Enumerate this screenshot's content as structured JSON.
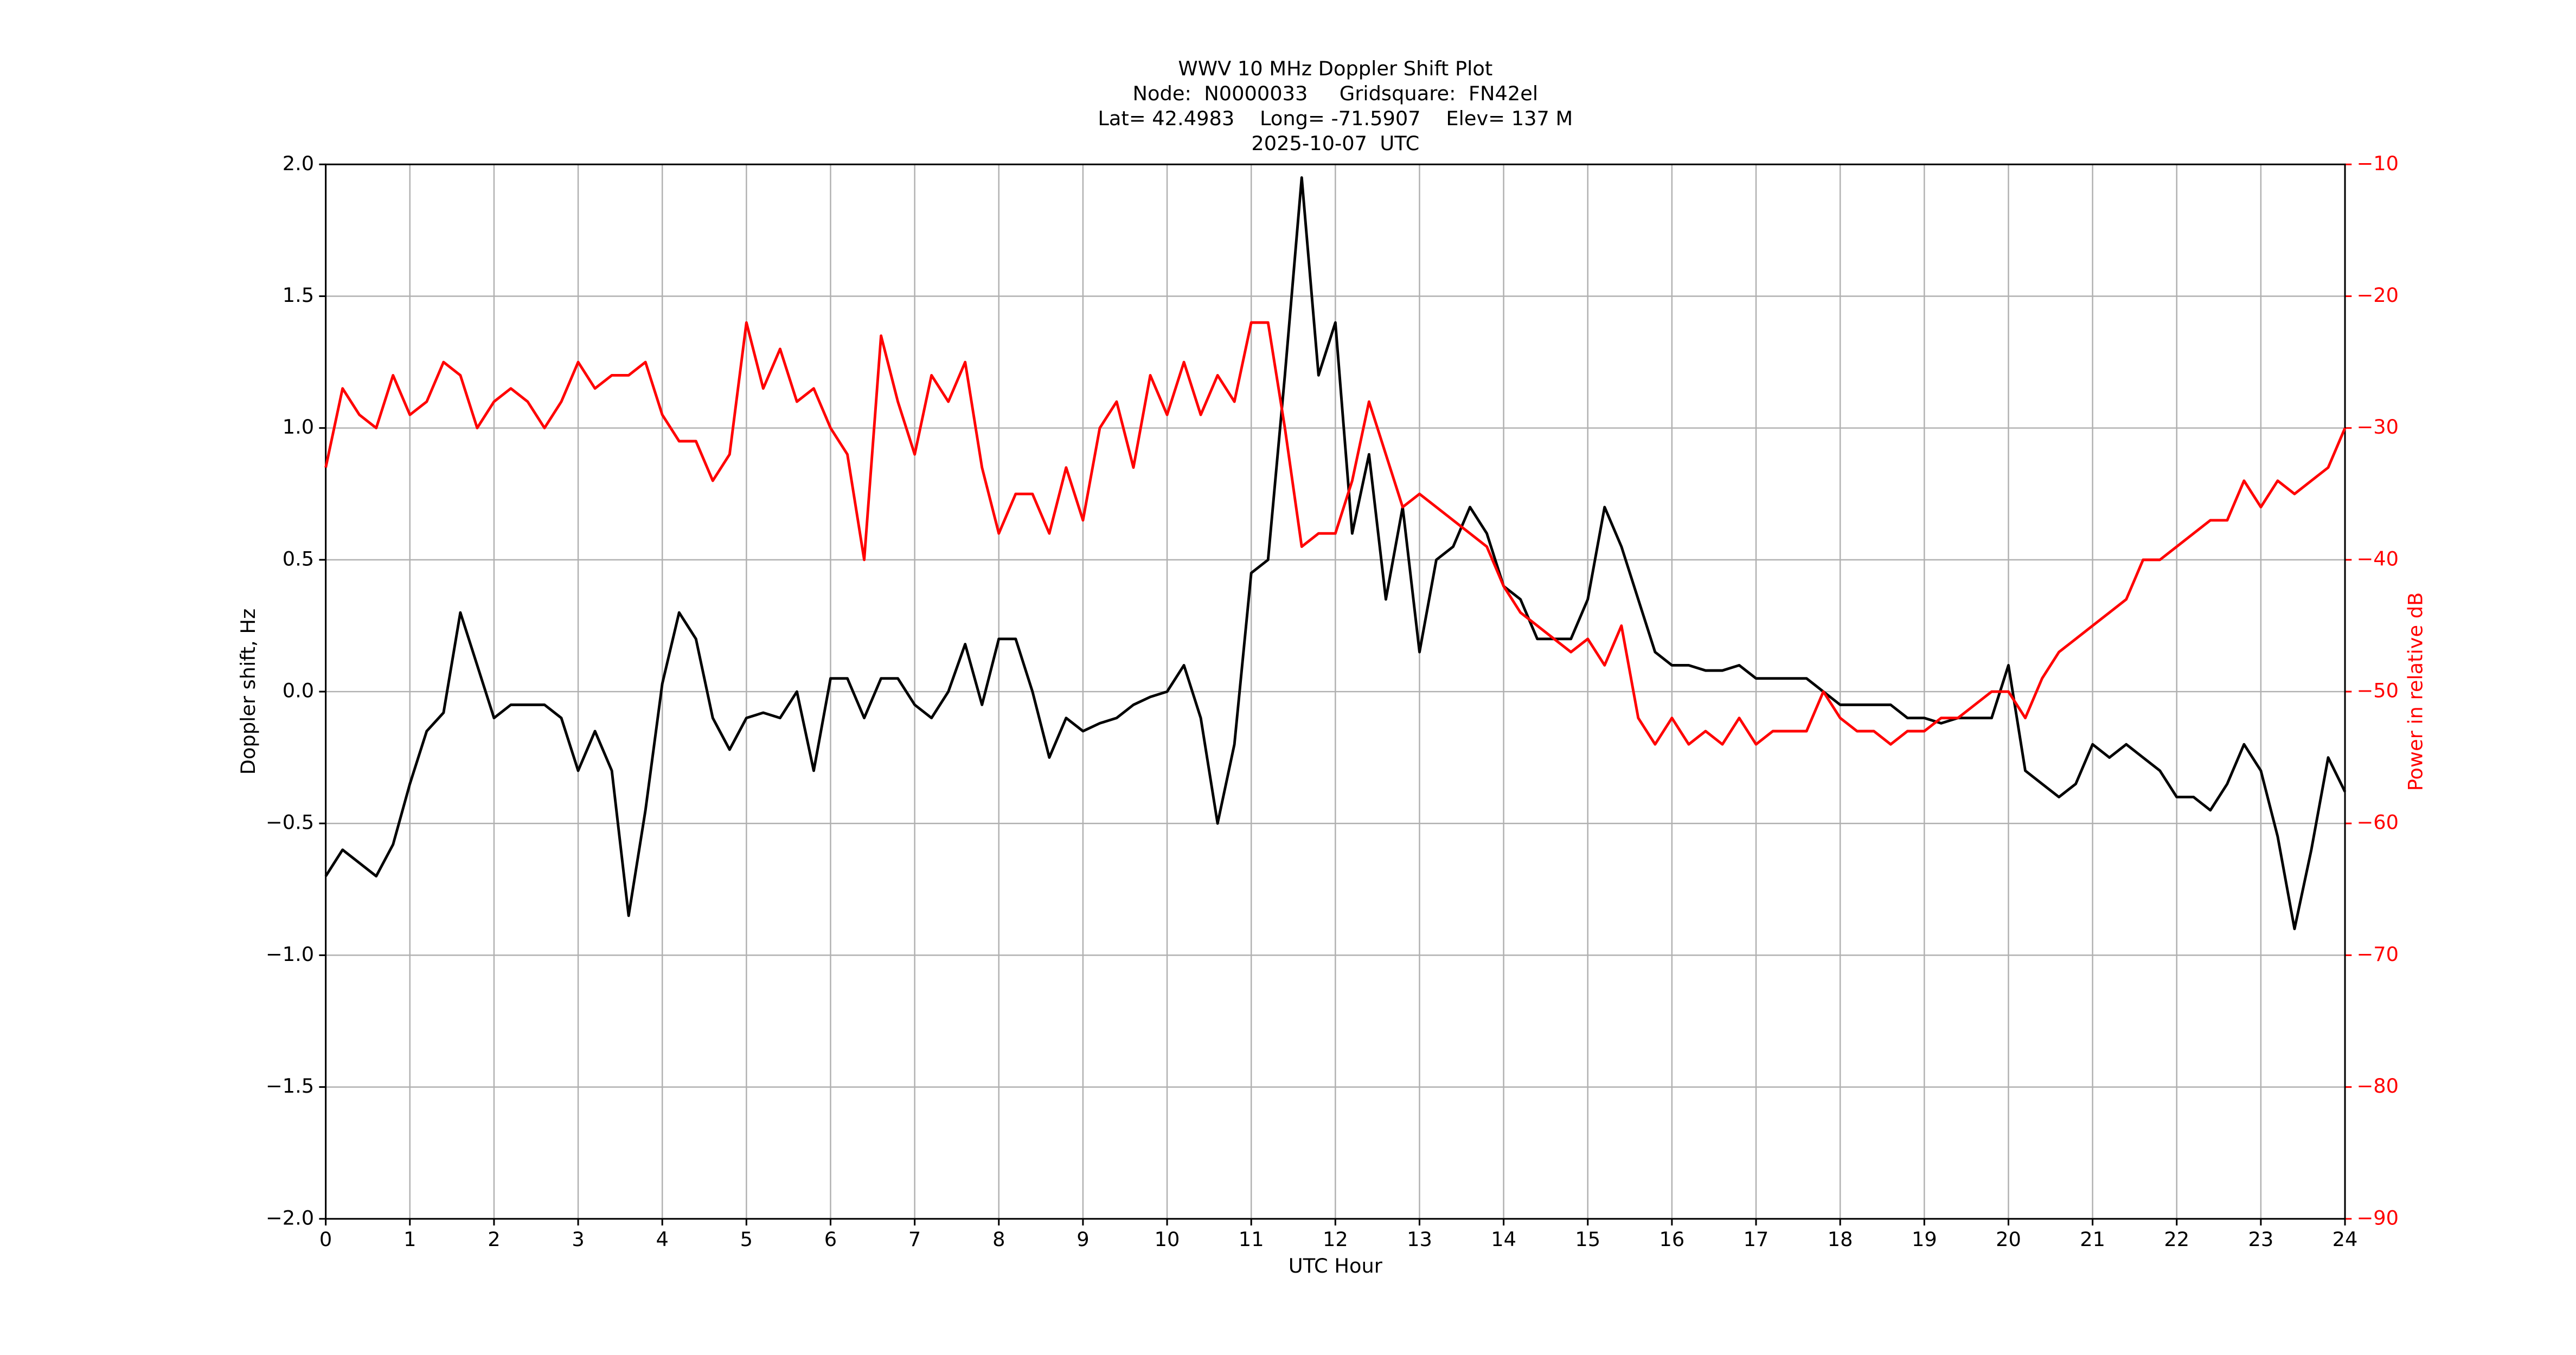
{
  "chart_data": {
    "type": "line",
    "title": [
      "WWV 10 MHz Doppler Shift Plot",
      "Node:  N0000033     Gridsquare:  FN42el",
      "Lat= 42.4983    Long= -71.5907    Elev= 137 M",
      "2025-10-07  UTC"
    ],
    "xlabel": "UTC Hour",
    "ylabel": "Doppler shift, Hz",
    "y2label": "Power in relative dB",
    "x": [
      0,
      0.2,
      0.4,
      0.6,
      0.8,
      1,
      1.2,
      1.4,
      1.6,
      1.8,
      2,
      2.2,
      2.4,
      2.6,
      2.8,
      3,
      3.2,
      3.4,
      3.6,
      3.8,
      4,
      4.2,
      4.4,
      4.6,
      4.8,
      5,
      5.2,
      5.4,
      5.6,
      5.8,
      6,
      6.2,
      6.4,
      6.6,
      6.8,
      7,
      7.2,
      7.4,
      7.6,
      7.8,
      8,
      8.2,
      8.4,
      8.6,
      8.8,
      9,
      9.2,
      9.4,
      9.6,
      9.8,
      10,
      10.2,
      10.4,
      10.6,
      10.8,
      11,
      11.2,
      11.4,
      11.6,
      11.8,
      12,
      12.2,
      12.4,
      12.6,
      12.8,
      13,
      13.2,
      13.4,
      13.6,
      13.8,
      14,
      14.2,
      14.4,
      14.6,
      14.8,
      15,
      15.2,
      15.4,
      15.6,
      15.8,
      16,
      16.2,
      16.4,
      16.6,
      16.8,
      17,
      17.2,
      17.4,
      17.6,
      17.8,
      18,
      18.2,
      18.4,
      18.6,
      18.8,
      19,
      19.2,
      19.4,
      19.6,
      19.8,
      20,
      20.2,
      20.4,
      20.6,
      20.8,
      21,
      21.2,
      21.4,
      21.6,
      21.8,
      22,
      22.2,
      22.4,
      22.6,
      22.8,
      23,
      23.2,
      23.4,
      23.6,
      23.8,
      24
    ],
    "series": [
      {
        "color": "#000000",
        "axis": "y",
        "values": [
          -0.7,
          -0.6,
          -0.65,
          -0.7,
          -0.58,
          -0.35,
          -0.15,
          -0.08,
          0.3,
          0.1,
          -0.1,
          -0.05,
          -0.05,
          -0.05,
          -0.1,
          -0.3,
          -0.15,
          -0.3,
          -0.85,
          -0.45,
          0.03,
          0.3,
          0.2,
          -0.1,
          -0.22,
          -0.1,
          -0.08,
          -0.1,
          0,
          -0.3,
          0.05,
          0.05,
          -0.1,
          0.05,
          0.05,
          -0.05,
          -0.1,
          0,
          0.18,
          -0.05,
          0.2,
          0.2,
          0,
          -0.25,
          -0.1,
          -0.15,
          -0.12,
          -0.1,
          -0.05,
          -0.02,
          0,
          0.1,
          -0.1,
          -0.5,
          -0.2,
          0.45,
          0.5,
          1.2,
          1.95,
          1.2,
          1.4,
          0.6,
          0.9,
          0.35,
          0.7,
          0.15,
          0.5,
          0.55,
          0.7,
          0.6,
          0.4,
          0.35,
          0.2,
          0.2,
          0.2,
          0.35,
          0.7,
          0.55,
          0.35,
          0.15,
          0.1,
          0.1,
          0.08,
          0.08,
          0.1,
          0.05,
          0.05,
          0.05,
          0.05,
          0,
          -0.05,
          -0.05,
          -0.05,
          -0.05,
          -0.1,
          -0.1,
          -0.12,
          -0.1,
          -0.1,
          -0.1,
          0.1,
          -0.3,
          -0.35,
          -0.4,
          -0.35,
          -0.2,
          -0.25,
          -0.2,
          -0.25,
          -0.3,
          -0.4,
          -0.4,
          -0.45,
          -0.35,
          -0.2,
          -0.3,
          -0.55,
          -0.9,
          -0.6,
          -0.25,
          -0.38
        ]
      },
      {
        "color": "#ff0000",
        "axis": "y2",
        "values": [
          -33,
          -27,
          -29,
          -30,
          -26,
          -29,
          -28,
          -25,
          -26,
          -30,
          -28,
          -27,
          -28,
          -30,
          -28,
          -25,
          -27,
          -26,
          -26,
          -25,
          -29,
          -31,
          -31,
          -34,
          -32,
          -22,
          -27,
          -24,
          -28,
          -27,
          -30,
          -32,
          -40,
          -23,
          -28,
          -32,
          -26,
          -28,
          -25,
          -33,
          -38,
          -35,
          -35,
          -38,
          -33,
          -37,
          -30,
          -28,
          -33,
          -26,
          -29,
          -25,
          -29,
          -26,
          -28,
          -22,
          -22,
          -30,
          -39,
          -38,
          -38,
          -34,
          -28,
          -32,
          -36,
          -35,
          -36,
          -37,
          -38,
          -39,
          -42,
          -44,
          -45,
          -46,
          -47,
          -46,
          -48,
          -45,
          -52,
          -54,
          -52,
          -54,
          -53,
          -54,
          -52,
          -54,
          -53,
          -53,
          -53,
          -50,
          -52,
          -53,
          -53,
          -54,
          -53,
          -53,
          -52,
          -52,
          -51,
          -50,
          -50,
          -52,
          -49,
          -47,
          -46,
          -45,
          -44,
          -43,
          -40,
          -40,
          -39,
          -38,
          -37,
          -37,
          -34,
          -36,
          -34,
          -35,
          -34,
          -33,
          -30
        ]
      }
    ],
    "xlim": [
      0,
      24
    ],
    "xticks": [
      0,
      1,
      2,
      3,
      4,
      5,
      6,
      7,
      8,
      9,
      10,
      11,
      12,
      13,
      14,
      15,
      16,
      17,
      18,
      19,
      20,
      21,
      22,
      23,
      24
    ],
    "ylim": [
      -2,
      2
    ],
    "yticks": [
      {
        "value": -2,
        "label": "−2.0"
      },
      {
        "value": -1.5,
        "label": "−1.5"
      },
      {
        "value": -1,
        "label": "−1.0"
      },
      {
        "value": -0.5,
        "label": "−0.5"
      },
      {
        "value": 0,
        "label": "0.0"
      },
      {
        "value": 0.5,
        "label": "0.5"
      },
      {
        "value": 1,
        "label": "1.0"
      },
      {
        "value": 1.5,
        "label": "1.5"
      },
      {
        "value": 2,
        "label": "2.0"
      }
    ],
    "y2lim": [
      -90,
      -10
    ],
    "y2ticks": [
      {
        "value": -90,
        "label": "−90"
      },
      {
        "value": -80,
        "label": "−80"
      },
      {
        "value": -70,
        "label": "−70"
      },
      {
        "value": -60,
        "label": "−60"
      },
      {
        "value": -50,
        "label": "−50"
      },
      {
        "value": -40,
        "label": "−40"
      },
      {
        "value": -30,
        "label": "−30"
      },
      {
        "value": -20,
        "label": "−20"
      },
      {
        "value": -10,
        "label": "−10"
      }
    ],
    "grid": true
  }
}
